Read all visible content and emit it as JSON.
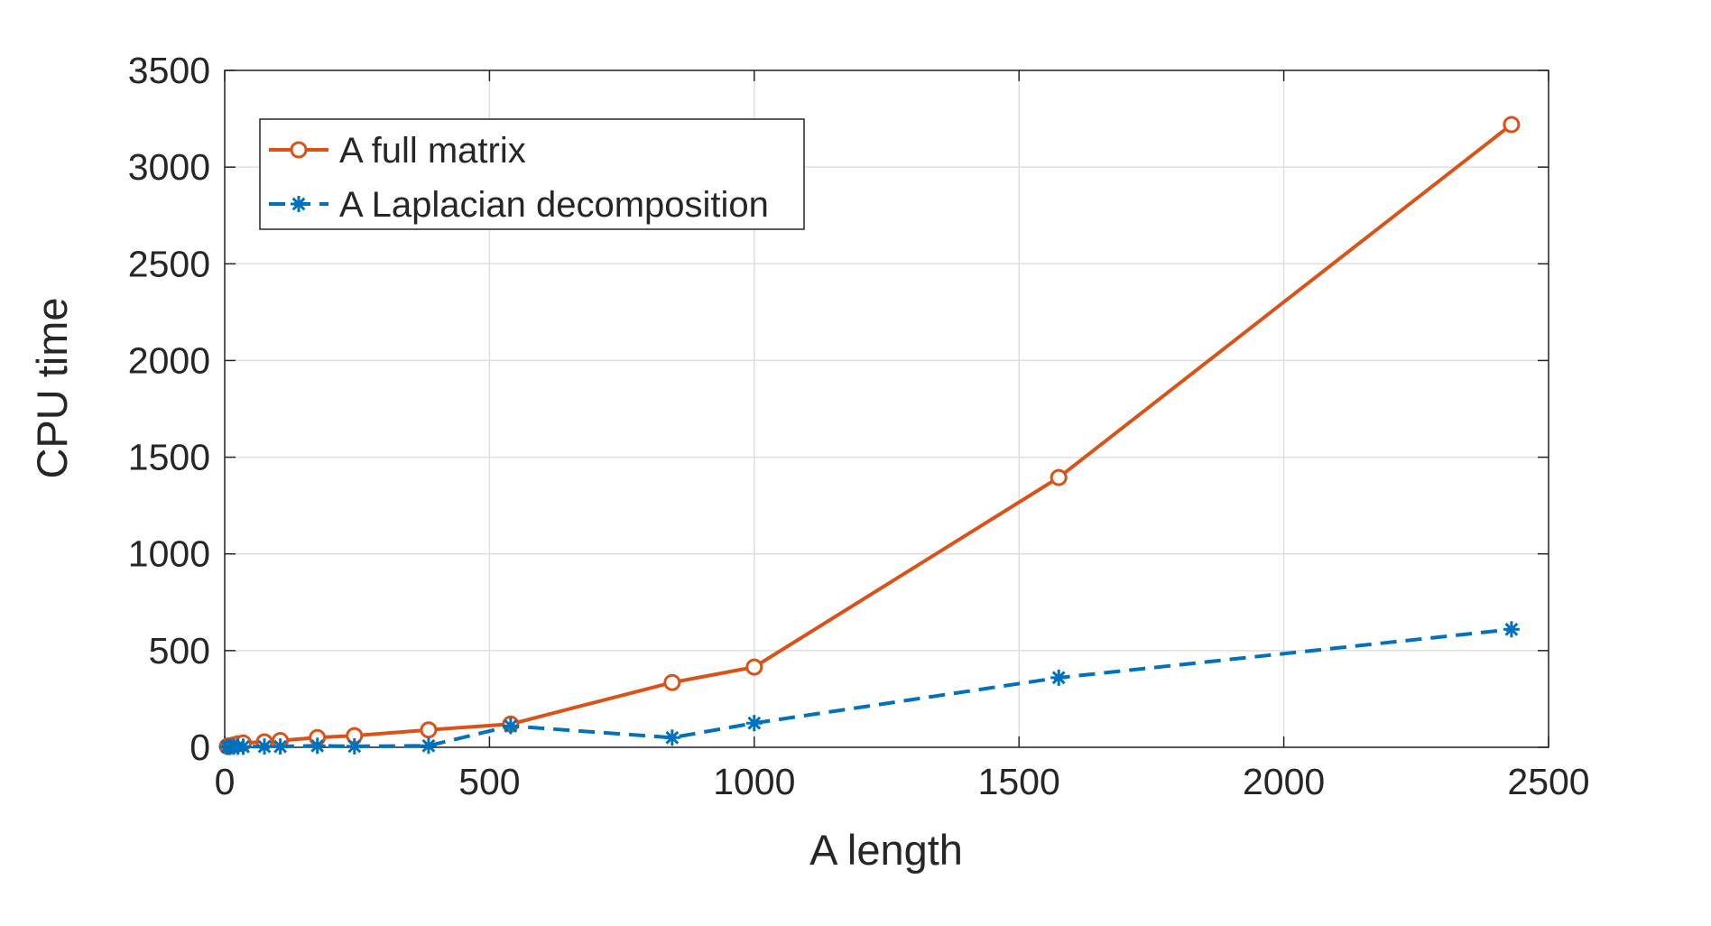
{
  "chart_data": {
    "type": "line",
    "title": "",
    "xlabel": "A length",
    "ylabel": "CPU time",
    "xlim": [
      0,
      2500
    ],
    "ylim": [
      0,
      3500
    ],
    "xticks": [
      0,
      500,
      1000,
      1500,
      2000,
      2500
    ],
    "yticks": [
      0,
      500,
      1000,
      1500,
      2000,
      2500,
      3000,
      3500
    ],
    "xtick_labels": [
      "0",
      "500",
      "1000",
      "1500",
      "2000",
      "2500"
    ],
    "ytick_labels": [
      "0",
      "500",
      "1000",
      "1500",
      "2000",
      "2500",
      "3000",
      "3500"
    ],
    "grid": true,
    "legend_position": "top-left",
    "series": [
      {
        "name": "A full matrix",
        "color": "#D95319",
        "line_style": "solid",
        "marker": "circle",
        "x": [
          5,
          10,
          17,
          25,
          35,
          75,
          105,
          175,
          245,
          385,
          540,
          845,
          1000,
          1575,
          2430
        ],
        "y": [
          5,
          8,
          12,
          18,
          22,
          28,
          35,
          50,
          60,
          90,
          120,
          335,
          415,
          1395,
          3220
        ]
      },
      {
        "name": "A Laplacian decomposition",
        "color": "#0072BD",
        "line_style": "dashed",
        "marker": "asterisk",
        "x": [
          5,
          10,
          17,
          25,
          35,
          75,
          105,
          175,
          245,
          385,
          540,
          845,
          1000,
          1575,
          2430
        ],
        "y": [
          2,
          2,
          3,
          3,
          3,
          4,
          4,
          8,
          5,
          8,
          110,
          50,
          125,
          360,
          610
        ]
      }
    ]
  }
}
